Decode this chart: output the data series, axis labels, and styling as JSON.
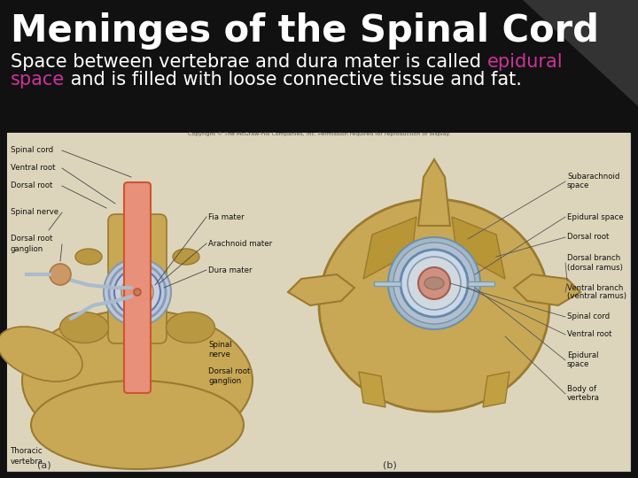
{
  "title": "Meninges of the Spinal Cord",
  "title_color": "#ffffff",
  "title_fontsize": 30,
  "background_color": "#111111",
  "subtitle_line1_parts": [
    {
      "text": "Space between vertebrae and dura mater is called ",
      "color": "#ffffff"
    },
    {
      "text": "epidural",
      "color": "#cc3399"
    }
  ],
  "subtitle_line2_parts": [
    {
      "text": "space",
      "color": "#cc3399"
    },
    {
      "text": " and is filled with loose connective tissue and fat.",
      "color": "#ffffff"
    }
  ],
  "subtitle_fontsize": 15,
  "fig_width": 7.2,
  "fig_height": 5.4,
  "dpi": 100,
  "img_bg": "#c8b98a",
  "img_border": "#bbbbbb",
  "corner_color": "#333333",
  "label_color": "#111111",
  "label_fontsize": 6.2
}
